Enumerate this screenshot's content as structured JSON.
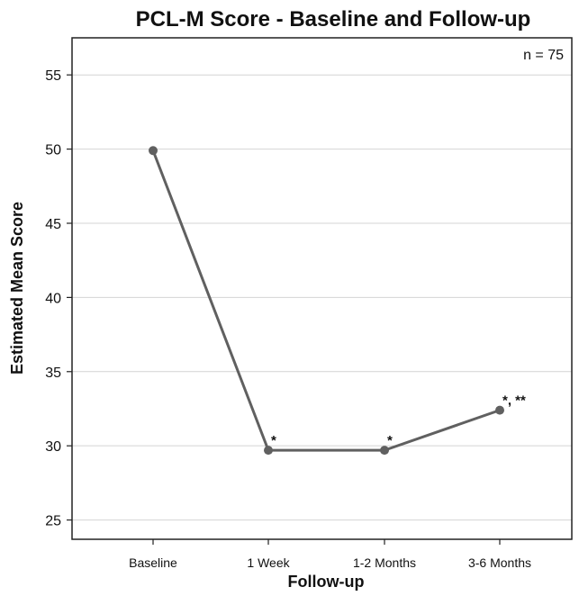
{
  "chart_data": {
    "type": "line",
    "title": "PCL-M Score - Baseline and Follow-up",
    "xlabel": "Follow-up",
    "ylabel": "Estimated Mean Score",
    "categories": [
      "Baseline",
      "1 Week",
      "1-2 Months",
      "3-6 Months"
    ],
    "series": [
      {
        "values": [
          49.9,
          29.7,
          29.7,
          32.4
        ]
      }
    ],
    "ylim": [
      23.7,
      57.5
    ],
    "yticks": [
      25,
      30,
      35,
      40,
      45,
      50,
      55
    ],
    "grid": "horizontal",
    "note": "n = 75",
    "annotations": [
      "",
      "*",
      "*",
      "*, **"
    ],
    "colors": {
      "line": "#606060",
      "marker": "#606060",
      "grid": "#d4d4d4",
      "frame": "#222222"
    }
  }
}
